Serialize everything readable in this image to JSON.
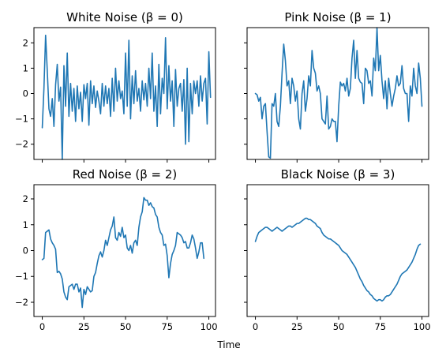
{
  "chart_data": [
    {
      "type": "line",
      "title": "White Noise (β = 0)",
      "xlim": [
        -5,
        104
      ],
      "ylim": [
        -2.6,
        2.6
      ],
      "xticks": [
        0,
        25,
        50,
        75,
        100
      ],
      "yticks": [
        -2,
        -1,
        0,
        1,
        2
      ],
      "ytick_labels": [
        "−2",
        "−1",
        "0",
        "1",
        "2"
      ],
      "show_xtick_labels": false,
      "show_ytick_labels": true,
      "series": [
        {
          "values": [
            -1.35,
            0.2,
            2.3,
            0.9,
            -0.6,
            -0.9,
            -0.2,
            -1.3,
            0.35,
            1.15,
            -0.3,
            0.25,
            -2.6,
            1.1,
            -0.5,
            1.6,
            -0.9,
            0.4,
            -0.7,
            0.2,
            -1.1,
            0.3,
            -0.6,
            0.05,
            -1.1,
            0.35,
            -0.2,
            0.4,
            -1.25,
            0.5,
            -0.4,
            0.3,
            -0.55,
            0.1,
            -0.3,
            -0.8,
            0.4,
            -0.5,
            0.3,
            -0.4,
            0.2,
            -0.9,
            0.6,
            -0.7,
            1.0,
            -0.3,
            0.5,
            -0.2,
            0.1,
            -0.8,
            1.6,
            -0.5,
            2.1,
            -1.0,
            0.7,
            -0.4,
            0.9,
            -0.3,
            0.2,
            -0.7,
            0.5,
            -0.25,
            0.4,
            -0.5,
            1.0,
            -0.2,
            1.6,
            -0.7,
            0.3,
            -1.3,
            1.15,
            -0.8,
            0.6,
            0.0,
            2.2,
            -0.6,
            1.1,
            -0.3,
            0.5,
            -1.3,
            0.95,
            -0.5,
            0.2,
            0.4,
            -0.7,
            0.55,
            -2.0,
            1.0,
            -1.9,
            0.4,
            -0.8,
            0.5,
            0.0,
            0.5,
            -0.5,
            0.7,
            -0.3,
            0.4,
            0.6,
            -1.2,
            1.65,
            -0.15
          ]
        }
      ]
    },
    {
      "type": "line",
      "title": "Pink Noise (β = 1)",
      "xlim": [
        -5,
        104
      ],
      "ylim": [
        -2.6,
        2.6
      ],
      "xticks": [
        0,
        25,
        50,
        75,
        100
      ],
      "yticks": [
        -2,
        -1,
        0,
        1,
        2
      ],
      "show_xtick_labels": false,
      "show_ytick_labels": false,
      "series": [
        {
          "values": [
            0.0,
            -0.05,
            -0.3,
            -0.15,
            -1.0,
            -0.5,
            -0.4,
            -1.5,
            -2.5,
            -2.55,
            -0.4,
            -0.5,
            0.0,
            -1.1,
            -1.3,
            -0.5,
            0.8,
            1.95,
            1.3,
            0.3,
            0.5,
            -0.4,
            0.6,
            0.3,
            -0.3,
            0.1,
            -1.0,
            -1.4,
            0.0,
            0.5,
            -0.7,
            -0.2,
            0.7,
            0.3,
            1.7,
            1.0,
            0.8,
            0.1,
            0.3,
            0.0,
            -1.0,
            -1.1,
            -1.2,
            -0.1,
            -1.4,
            -1.3,
            -1.0,
            -1.1,
            -1.1,
            -1.9,
            -0.5,
            0.45,
            0.3,
            0.4,
            0.1,
            0.6,
            -0.1,
            0.2,
            1.4,
            2.1,
            0.6,
            1.7,
            0.6,
            0.45,
            0.4,
            -0.4,
            1.0,
            0.9,
            0.4,
            0.5,
            -0.1,
            1.4,
            0.9,
            2.6,
            0.9,
            1.5,
            0.5,
            -0.2,
            0.5,
            -0.6,
            0.6,
            0.0,
            -0.5,
            -0.1,
            0.2,
            0.7,
            0.3,
            0.4,
            1.1,
            0.2,
            0.0,
            0.0,
            -1.1,
            0.3,
            -0.1,
            1.0,
            0.3,
            0.0,
            1.2,
            0.6,
            -0.5
          ]
        }
      ]
    },
    {
      "type": "line",
      "title": "Red Noise (β = 2)",
      "xlim": [
        -5,
        104
      ],
      "ylim": [
        -2.55,
        2.55
      ],
      "xticks": [
        0,
        25,
        50,
        75,
        100
      ],
      "xtick_labels": [
        "0",
        "25",
        "50",
        "75",
        "100"
      ],
      "yticks": [
        -2,
        -1,
        0,
        1,
        2
      ],
      "ytick_labels": [
        "−2",
        "−1",
        "0",
        "1",
        "2"
      ],
      "show_xtick_labels": true,
      "show_ytick_labels": true,
      "series": [
        {
          "values": [
            -0.35,
            -0.3,
            0.7,
            0.75,
            0.8,
            0.45,
            0.3,
            0.2,
            0.05,
            -0.85,
            -0.8,
            -0.9,
            -1.1,
            -1.6,
            -1.8,
            -1.9,
            -1.4,
            -1.35,
            -1.3,
            -1.5,
            -1.3,
            -1.3,
            -1.6,
            -1.45,
            -2.2,
            -1.5,
            -1.7,
            -1.4,
            -1.5,
            -1.6,
            -1.55,
            -1.0,
            -0.85,
            -0.5,
            -0.2,
            -0.05,
            -0.25,
            0.0,
            0.4,
            0.2,
            0.5,
            0.8,
            0.95,
            1.3,
            0.5,
            0.4,
            0.7,
            0.55,
            0.9,
            0.5,
            0.6,
            0.1,
            0.0,
            0.2,
            -0.1,
            0.3,
            0.4,
            0.2,
            0.9,
            1.3,
            1.5,
            2.05,
            1.95,
            1.95,
            1.75,
            1.85,
            1.7,
            1.65,
            1.4,
            1.3,
            0.9,
            0.7,
            0.6,
            0.2,
            0.25,
            -0.2,
            -1.05,
            -0.5,
            -0.15,
            0.0,
            0.2,
            0.7,
            0.65,
            0.6,
            0.5,
            0.3,
            0.35,
            0.1,
            0.1,
            0.3,
            0.6,
            0.45,
            0.1,
            -0.3,
            -0.05,
            0.3,
            0.3,
            -0.3
          ]
        }
      ]
    },
    {
      "type": "line",
      "title": "Black Noise (β = 3)",
      "xlim": [
        -5,
        104
      ],
      "ylim": [
        -2.55,
        2.55
      ],
      "xticks": [
        0,
        25,
        50,
        75,
        100
      ],
      "xtick_labels": [
        "0",
        "25",
        "50",
        "75",
        "100"
      ],
      "yticks": [
        -2,
        -1,
        0,
        1,
        2
      ],
      "show_xtick_labels": true,
      "show_ytick_labels": false,
      "series": [
        {
          "values": [
            0.35,
            0.55,
            0.7,
            0.75,
            0.8,
            0.85,
            0.9,
            0.9,
            0.85,
            0.8,
            0.75,
            0.8,
            0.85,
            0.9,
            0.85,
            0.8,
            0.75,
            0.8,
            0.85,
            0.9,
            0.95,
            0.95,
            0.9,
            0.95,
            1.0,
            1.05,
            1.05,
            1.1,
            1.15,
            1.2,
            1.25,
            1.25,
            1.2,
            1.2,
            1.15,
            1.1,
            1.05,
            0.95,
            0.9,
            0.85,
            0.7,
            0.6,
            0.55,
            0.5,
            0.45,
            0.45,
            0.4,
            0.35,
            0.3,
            0.25,
            0.2,
            0.1,
            0.0,
            -0.05,
            -0.1,
            -0.15,
            -0.25,
            -0.35,
            -0.45,
            -0.55,
            -0.65,
            -0.8,
            -0.95,
            -1.1,
            -1.2,
            -1.35,
            -1.45,
            -1.55,
            -1.6,
            -1.7,
            -1.75,
            -1.85,
            -1.9,
            -1.95,
            -1.9,
            -1.9,
            -1.95,
            -1.9,
            -1.8,
            -1.75,
            -1.75,
            -1.7,
            -1.6,
            -1.5,
            -1.4,
            -1.3,
            -1.15,
            -1.0,
            -0.9,
            -0.85,
            -0.8,
            -0.75,
            -0.65,
            -0.55,
            -0.45,
            -0.3,
            -0.15,
            0.05,
            0.2,
            0.25
          ]
        }
      ]
    }
  ],
  "xlabel": "Time"
}
